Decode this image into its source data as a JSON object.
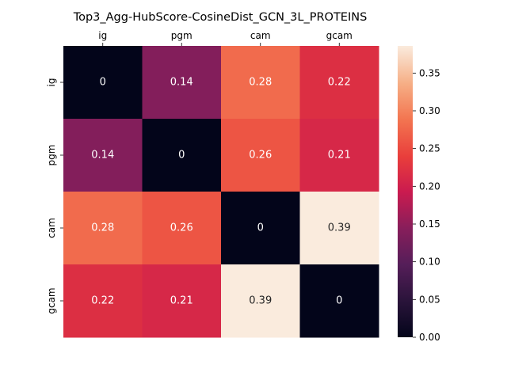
{
  "chart_data": {
    "type": "heatmap",
    "title": "Top3_Agg-HubScore-CosineDist_GCN_3L_PROTEINS",
    "x_categories": [
      "ig",
      "pgm",
      "cam",
      "gcam"
    ],
    "y_categories": [
      "ig",
      "pgm",
      "cam",
      "gcam"
    ],
    "x_tick_position": "top",
    "values": [
      [
        0,
        0.14,
        0.28,
        0.22
      ],
      [
        0.14,
        0,
        0.26,
        0.21
      ],
      [
        0.28,
        0.26,
        0,
        0.39
      ],
      [
        0.22,
        0.21,
        0.39,
        0
      ]
    ],
    "annotations": [
      [
        "0",
        "0.14",
        "0.28",
        "0.22"
      ],
      [
        "0.14",
        "0",
        "0.26",
        "0.21"
      ],
      [
        "0.28",
        "0.26",
        "0",
        "0.39"
      ],
      [
        "0.22",
        "0.21",
        "0.39",
        "0"
      ]
    ],
    "colormap": "rocket",
    "colorbar": {
      "range": [
        0,
        0.386
      ],
      "ticks": [
        0.0,
        0.05,
        0.1,
        0.15,
        0.2,
        0.25,
        0.3,
        0.35
      ],
      "tick_labels": [
        "0.00",
        "0.05",
        "0.10",
        "0.15",
        "0.20",
        "0.25",
        "0.30",
        "0.35"
      ]
    }
  }
}
